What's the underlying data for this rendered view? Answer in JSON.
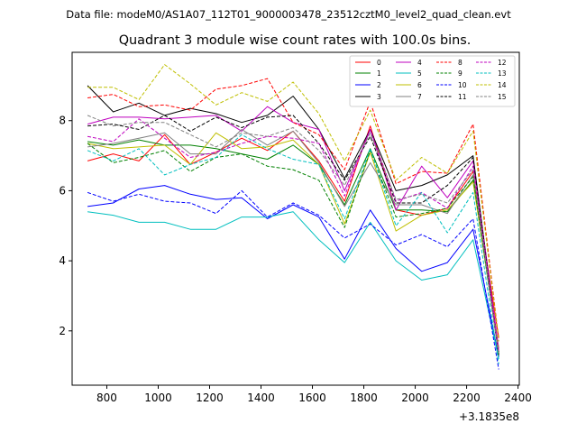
{
  "header": {
    "data_file": "Data file: modeM0/AS1A07_112T01_9000003478_23512cztM0_level2_quad_clean.evt"
  },
  "chart_data": {
    "type": "line",
    "title": "Quadrant 3 module wise count rates with 100.0s bins.",
    "xlabel": "",
    "ylabel": "",
    "x_offset_label": "+3.1835e8",
    "xlim": [
      665,
      2405
    ],
    "ylim": [
      0.45,
      9.95
    ],
    "xticks": [
      800,
      1000,
      1200,
      1400,
      1600,
      1800,
      2000,
      2200,
      2400
    ],
    "yticks": [
      2,
      4,
      6,
      8
    ],
    "grid": false,
    "legend_placement": "top-right",
    "legend_columns": 4,
    "x": [
      725,
      825,
      925,
      1025,
      1125,
      1225,
      1325,
      1425,
      1525,
      1625,
      1725,
      1825,
      1925,
      2025,
      2125,
      2225,
      2325
    ],
    "series": [
      {
        "name": "0",
        "color": "#ff0000",
        "dash": "solid",
        "values": [
          6.85,
          7.05,
          6.85,
          7.6,
          6.75,
          7.1,
          7.5,
          7.15,
          7.7,
          6.85,
          5.7,
          7.85,
          5.45,
          5.3,
          5.5,
          6.55,
          1.8
        ]
      },
      {
        "name": "1",
        "color": "#008000",
        "dash": "solid",
        "values": [
          7.4,
          7.3,
          7.45,
          7.3,
          7.3,
          7.2,
          7.05,
          6.9,
          7.3,
          6.75,
          5.6,
          7.2,
          5.45,
          5.45,
          5.4,
          6.3,
          1.4
        ]
      },
      {
        "name": "2",
        "color": "#0000ff",
        "dash": "solid",
        "values": [
          5.55,
          5.65,
          6.05,
          6.15,
          5.9,
          5.75,
          5.8,
          5.2,
          5.6,
          5.25,
          4.05,
          5.45,
          4.35,
          3.7,
          3.95,
          4.9,
          1.25
        ]
      },
      {
        "name": "3",
        "color": "#000000",
        "dash": "solid",
        "values": [
          9.0,
          8.25,
          8.5,
          8.15,
          8.35,
          8.2,
          7.95,
          8.15,
          8.7,
          7.75,
          6.35,
          7.75,
          6.0,
          6.15,
          6.45,
          7.0,
          1.35
        ]
      },
      {
        "name": "4",
        "color": "#bf00bf",
        "dash": "solid",
        "values": [
          7.9,
          8.1,
          8.1,
          8.05,
          8.1,
          8.15,
          7.7,
          8.4,
          7.95,
          7.75,
          6.0,
          7.75,
          5.45,
          6.7,
          5.8,
          6.85,
          1.5
        ]
      },
      {
        "name": "5",
        "color": "#00bfbf",
        "dash": "solid",
        "values": [
          5.4,
          5.3,
          5.1,
          5.1,
          4.9,
          4.9,
          5.25,
          5.25,
          5.4,
          4.6,
          3.95,
          5.1,
          4.0,
          3.45,
          3.6,
          4.6,
          1.2
        ]
      },
      {
        "name": "6",
        "color": "#bfbf00",
        "dash": "solid",
        "values": [
          7.35,
          7.2,
          7.25,
          7.3,
          6.75,
          7.65,
          7.2,
          7.25,
          7.45,
          6.75,
          5.05,
          7.1,
          4.85,
          5.3,
          5.45,
          6.25,
          1.45
        ]
      },
      {
        "name": "7",
        "color": "#808080",
        "dash": "solid",
        "values": [
          7.25,
          7.35,
          7.5,
          7.65,
          7.05,
          7.05,
          7.75,
          7.3,
          7.7,
          6.8,
          5.55,
          6.8,
          5.6,
          5.6,
          5.35,
          6.45,
          1.3
        ]
      },
      {
        "name": "8",
        "color": "#ff0000",
        "dash": "dashed",
        "values": [
          8.65,
          8.75,
          8.4,
          8.45,
          8.3,
          8.9,
          9.0,
          9.2,
          7.95,
          7.6,
          6.6,
          8.55,
          6.2,
          6.55,
          6.5,
          7.9,
          1.75
        ]
      },
      {
        "name": "9",
        "color": "#008000",
        "dash": "dashed",
        "values": [
          7.35,
          6.8,
          6.95,
          7.15,
          6.55,
          6.95,
          7.05,
          6.7,
          6.6,
          6.3,
          4.95,
          7.15,
          5.25,
          5.35,
          5.5,
          6.4,
          1.35
        ]
      },
      {
        "name": "10",
        "color": "#0000ff",
        "dash": "dashed",
        "values": [
          5.95,
          5.7,
          5.9,
          5.7,
          5.65,
          5.35,
          6.0,
          5.25,
          5.65,
          5.3,
          4.65,
          5.05,
          4.45,
          4.75,
          4.4,
          5.2,
          0.9
        ]
      },
      {
        "name": "11",
        "color": "#000000",
        "dash": "dashed",
        "values": [
          7.85,
          7.9,
          7.75,
          8.15,
          7.7,
          8.1,
          7.8,
          8.1,
          8.15,
          7.35,
          6.3,
          7.55,
          5.65,
          5.65,
          6.15,
          6.95,
          1.3
        ]
      },
      {
        "name": "12",
        "color": "#bf00bf",
        "dash": "dashed",
        "values": [
          7.55,
          7.4,
          8.05,
          7.5,
          6.95,
          7.1,
          7.35,
          7.55,
          7.5,
          7.35,
          5.85,
          7.75,
          5.7,
          5.95,
          5.5,
          6.7,
          1.4
        ]
      },
      {
        "name": "13",
        "color": "#00bfbf",
        "dash": "dashed",
        "values": [
          7.15,
          6.85,
          7.2,
          6.45,
          6.75,
          6.95,
          7.6,
          7.2,
          6.9,
          6.75,
          5.2,
          7.2,
          5.0,
          5.95,
          4.8,
          5.95,
          1.05
        ]
      },
      {
        "name": "14",
        "color": "#bfbf00",
        "dash": "dashed",
        "values": [
          8.95,
          8.95,
          8.6,
          9.6,
          9.05,
          8.45,
          8.8,
          8.55,
          9.1,
          8.2,
          6.85,
          8.3,
          6.3,
          6.95,
          6.5,
          7.7,
          1.7
        ]
      },
      {
        "name": "15",
        "color": "#808080",
        "dash": "dashed",
        "values": [
          8.15,
          7.85,
          7.95,
          7.95,
          7.6,
          7.25,
          7.65,
          7.55,
          7.8,
          7.15,
          6.15,
          7.65,
          5.75,
          5.9,
          5.65,
          6.6,
          1.3
        ]
      }
    ]
  }
}
